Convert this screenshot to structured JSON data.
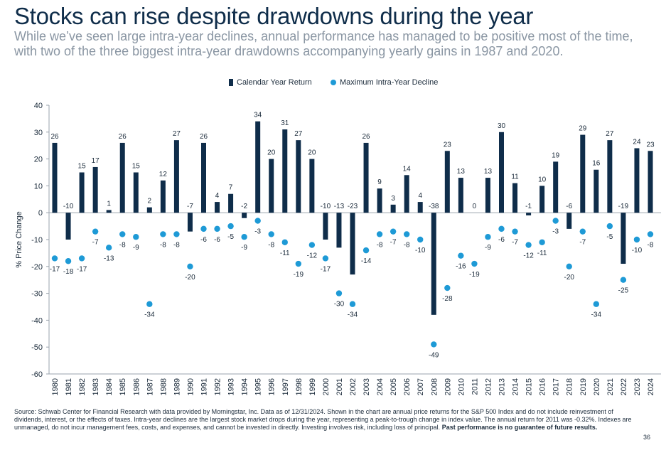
{
  "header": {
    "title": "Stocks can rise despite drawdowns during the year",
    "subtitle": "While we’ve seen large intra-year declines, annual performance has managed to be positive most of the time, with two of the three biggest intra-year drawdowns accompanying yearly gains in 1987 and 2020."
  },
  "colors": {
    "bar": "#0f2d4a",
    "dot": "#1e9ad6"
  },
  "chart_data": {
    "type": "bar",
    "ylabel": "% Price Change",
    "ylim": [
      -60,
      40
    ],
    "yticks": [
      40,
      30,
      20,
      10,
      0,
      -10,
      -20,
      -30,
      -40,
      -50,
      -60
    ],
    "grid": false,
    "legend_position": "top",
    "categories": [
      "1980",
      "1981",
      "1982",
      "1983",
      "1984",
      "1985",
      "1986",
      "1987",
      "1988",
      "1989",
      "1990",
      "1991",
      "1992",
      "1993",
      "1994",
      "1995",
      "1996",
      "1997",
      "1998",
      "1999",
      "2000",
      "2001",
      "2002",
      "2003",
      "2004",
      "2005",
      "2006",
      "2007",
      "2008",
      "2009",
      "2010",
      "2011",
      "2012",
      "2013",
      "2014",
      "2015",
      "2016",
      "2017",
      "2018",
      "2019",
      "2020",
      "2021",
      "2022",
      "2023",
      "2024"
    ],
    "series": [
      {
        "name": "Calendar Year Return",
        "kind": "bar",
        "values": [
          26,
          -10,
          15,
          17,
          1,
          26,
          15,
          2,
          12,
          27,
          -7,
          26,
          4,
          7,
          -2,
          34,
          20,
          31,
          27,
          20,
          -10,
          -13,
          -23,
          26,
          9,
          3,
          14,
          4,
          -38,
          23,
          13,
          0,
          13,
          30,
          11,
          -1,
          10,
          19,
          -6,
          29,
          16,
          27,
          -19,
          24,
          23
        ]
      },
      {
        "name": "Maximum Intra-Year Decline",
        "kind": "dot",
        "values": [
          -17,
          -18,
          -17,
          -7,
          -13,
          -8,
          -9,
          -34,
          -8,
          -8,
          -20,
          -6,
          -6,
          -5,
          -9,
          -3,
          -8,
          -11,
          -19,
          -12,
          -17,
          -30,
          -34,
          -14,
          -8,
          -7,
          -8,
          -10,
          -49,
          -28,
          -16,
          -19,
          -9,
          -6,
          -7,
          -12,
          -11,
          -3,
          -20,
          -7,
          -34,
          -5,
          -25,
          -10,
          -8
        ]
      }
    ]
  },
  "footer": {
    "source_text": "Source: Schwab Center for Financial Research with data provided by Morningstar, Inc. Data as of 12/31/2024. Shown in the chart are annual price returns for the S&P 500 Index and do not include reinvestment of dividends, interest, or the effects of taxes. Intra-year declines are the largest stock market drops during the year, representing a peak-to-trough change in index value. The annual return for 2011 was -0.32%. Indexes are unmanaged, do not incur management fees, costs, and expenses, and cannot be invested in directly. Investing involves risk, including loss of principal.",
    "source_bold": "Past performance is no guarantee of future results.",
    "page_number": "36"
  }
}
